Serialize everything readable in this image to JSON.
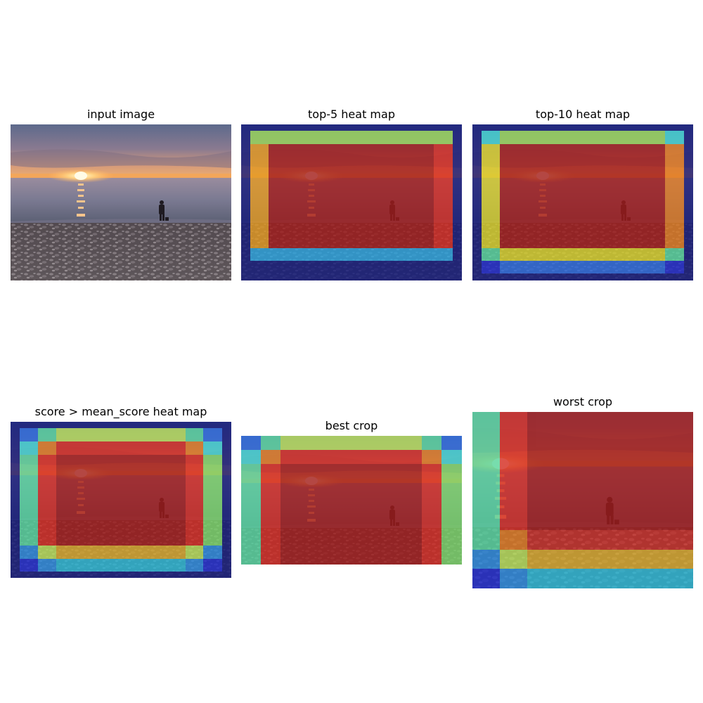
{
  "panels": [
    {
      "id": "input",
      "title": "input image"
    },
    {
      "id": "top5",
      "title": "top-5 heat map"
    },
    {
      "id": "top10",
      "title": "top-10 heat map"
    },
    {
      "id": "mean",
      "title": "score > mean_score heat map"
    },
    {
      "id": "best",
      "title": "best crop"
    },
    {
      "id": "worst",
      "title": "worst crop"
    }
  ],
  "colors": {
    "dark_blue": "#1a1e8c",
    "blue": "#1f4fd8",
    "mid_blue": "#2a8ae0",
    "cyan": "#3fd6d6",
    "aqua_green": "#56d6a0",
    "green": "#9ad95a",
    "yellow": "#d8d22c",
    "orange": "#e07b22",
    "red": "#d42a22",
    "dark_red": "#8c1a1a"
  }
}
